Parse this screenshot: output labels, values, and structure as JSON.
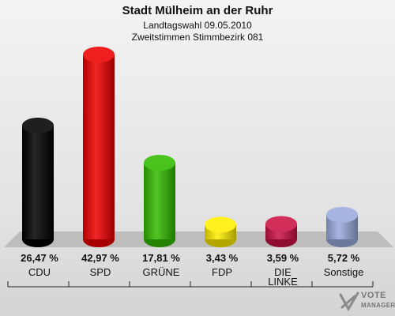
{
  "chart_data": {
    "type": "bar",
    "title": "Stadt Mülheim an der Ruhr",
    "subtitle_line1": "Landtagswahl 09.05.2010",
    "subtitle_line2": "Zweitstimmen Stimmbezirk 081",
    "categories": [
      "CDU",
      "SPD",
      "GRÜNE",
      "FDP",
      "DIE LINKE",
      "Sonstige"
    ],
    "category_lines": [
      [
        "CDU"
      ],
      [
        "SPD"
      ],
      [
        "GRÜNE"
      ],
      [
        "FDP"
      ],
      [
        "DIE",
        "LINKE"
      ],
      [
        "Sonstige"
      ]
    ],
    "values": [
      26.47,
      42.97,
      17.81,
      3.43,
      3.59,
      5.72
    ],
    "value_labels": [
      "26,47 %",
      "42,97 %",
      "17,81 %",
      "3,43 %",
      "3,59 %",
      "5,72 %"
    ],
    "colors": [
      "#000000",
      "#ee0000",
      "#33bb00",
      "#ffee00",
      "#cc1144",
      "#99aadd"
    ],
    "ylim": [
      0,
      45
    ]
  },
  "logo": {
    "line1": "VOTE",
    "line2": "MANAGER"
  }
}
